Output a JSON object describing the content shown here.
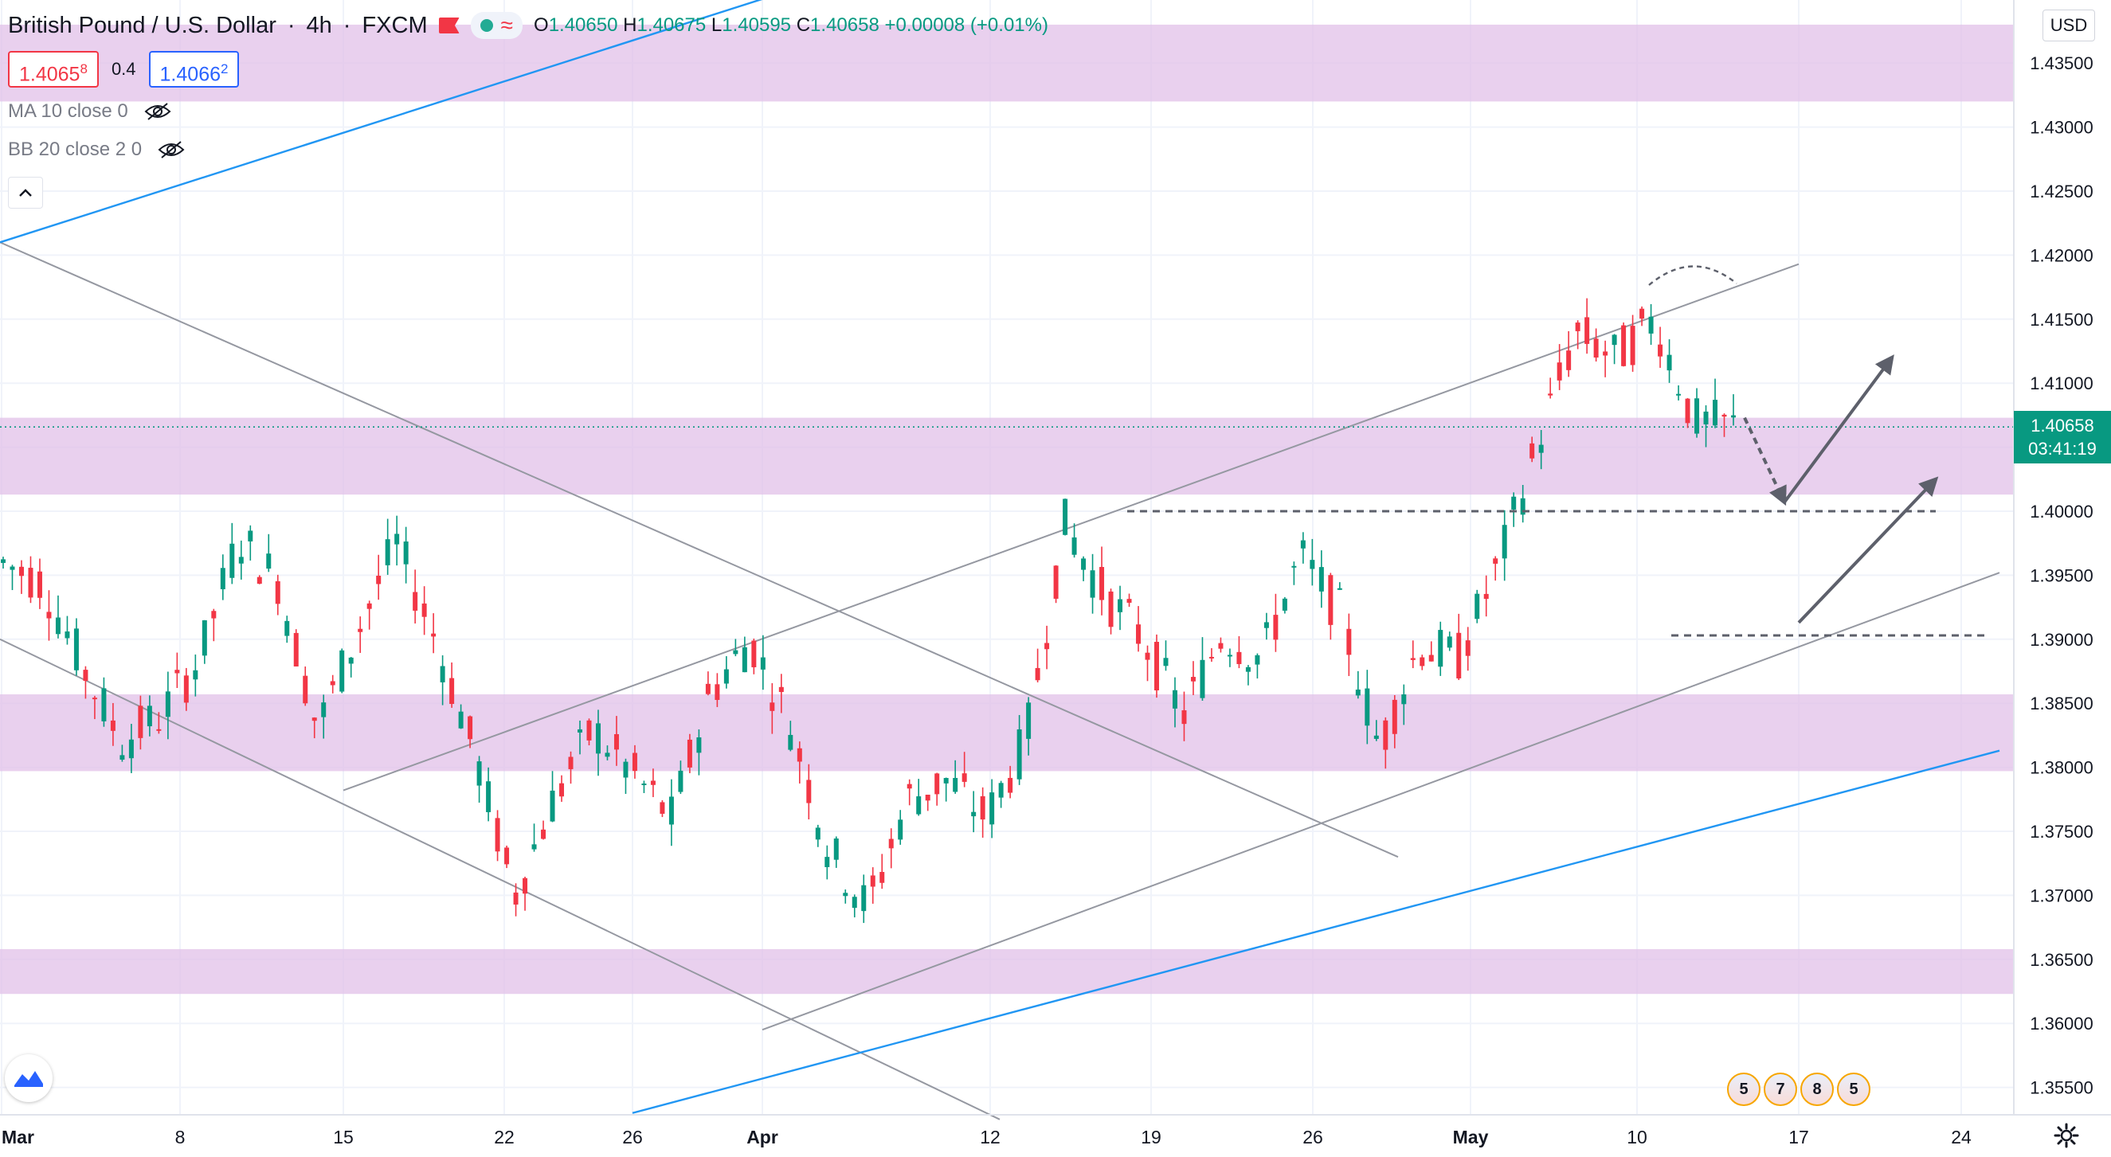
{
  "header": {
    "symbol": "British Pound / U.S. Dollar",
    "sep1": "·",
    "interval": "4h",
    "sep2": "·",
    "source": "FXCM",
    "approx_glyph": "≈",
    "ohlc": {
      "o_label": "O",
      "o": "1.40650",
      "h_label": "H",
      "h": "1.40675",
      "l_label": "L",
      "l": "1.40595",
      "c_label": "C",
      "c": "1.40658",
      "change": "+0.00008 (+0.01%)"
    }
  },
  "trade": {
    "sell_main": "1.4065",
    "sell_sup": "8",
    "spread": "0.4",
    "buy_main": "1.4066",
    "buy_sup": "2"
  },
  "indicators": [
    {
      "label": "MA 10 close 0"
    },
    {
      "label": "BB 20 close 2 0"
    }
  ],
  "currency_button": "USD",
  "current_price": {
    "price": "1.40658",
    "countdown": "03:41:19"
  },
  "events": [
    "5",
    "7",
    "8",
    "5"
  ],
  "colors": {
    "up": "#089981",
    "down": "#f23645",
    "zone": "#e1bee7",
    "channel": "#9598a1",
    "blue_line": "#2962ff"
  },
  "chart_data": {
    "type": "candlestick",
    "price_axis": {
      "min": 1.3545,
      "max": 1.4385,
      "ticks": [
        "1.35500",
        "1.36000",
        "1.36500",
        "1.37000",
        "1.37500",
        "1.38000",
        "1.38500",
        "1.39000",
        "1.39500",
        "1.40000",
        "1.40500",
        "1.41000",
        "1.41500",
        "1.42000",
        "1.42500",
        "1.43000",
        "1.43500"
      ]
    },
    "time_axis": {
      "labels": [
        "Mar",
        "8",
        "15",
        "22",
        "26",
        "Apr",
        "12",
        "19",
        "26",
        "May",
        "10",
        "17",
        "24"
      ]
    },
    "zones": [
      {
        "low": 1.432,
        "high": 1.438
      },
      {
        "low": 1.4013,
        "high": 1.4073
      },
      {
        "low": 1.3797,
        "high": 1.3857
      },
      {
        "low": 1.3623,
        "high": 1.3658
      }
    ],
    "levels": [
      {
        "price": 1.4,
        "from": "Apr 19",
        "to": "May 24"
      },
      {
        "price": 1.3903,
        "from": "May 13",
        "to": "May 26"
      }
    ],
    "trend_lines": [
      {
        "role": "upper channel",
        "p1": [
          "Mar 15",
          1.3782
        ],
        "p2": [
          "May 17",
          1.4193
        ]
      },
      {
        "role": "lower channel",
        "p1": [
          "Apr 1",
          1.3595
        ],
        "p2": [
          "May 26",
          1.3952
        ]
      },
      {
        "role": "descending upper",
        "p1": [
          "Mar 1",
          1.421
        ],
        "p2": [
          "Apr 21",
          1.373
        ]
      },
      {
        "role": "descending lower",
        "p1": [
          "Mar 1",
          1.39
        ],
        "p2": [
          "Apr 16",
          1.3525
        ]
      },
      {
        "role": "long-term support",
        "p1": [
          "Mar 26",
          1.353
        ],
        "p2": [
          "May 26",
          1.3813
        ]
      },
      {
        "role": "long-term resistance",
        "p1": [
          "Mar 1",
          1.421
        ],
        "p2": [
          "Apr 1",
          1.44
        ]
      }
    ],
    "projections": [
      {
        "style": "dashed arrow",
        "from": [
          "May 13",
          1.4073
        ],
        "to": [
          "May 16",
          1.4007
        ]
      },
      {
        "style": "arrow",
        "from": [
          "May 16",
          1.4007
        ],
        "to": [
          "May 21",
          1.412
        ]
      },
      {
        "style": "arrow",
        "from": [
          "May 17",
          1.3913
        ],
        "to": [
          "May 24",
          1.4025
        ]
      }
    ],
    "candles_ohlc_sample": [
      [
        1.393,
        1.3985,
        1.3905,
        1.396
      ],
      [
        1.396,
        1.401,
        1.394,
        1.3945
      ],
      [
        1.3945,
        1.3965,
        1.386,
        1.388
      ],
      [
        1.388,
        1.392,
        1.378,
        1.382
      ],
      [
        1.382,
        1.386,
        1.38,
        1.384
      ],
      [
        1.384,
        1.39,
        1.3815,
        1.3885
      ],
      [
        1.3885,
        1.399,
        1.387,
        1.398
      ],
      [
        1.398,
        1.4005,
        1.393,
        1.3945
      ],
      [
        1.3945,
        1.396,
        1.381,
        1.383
      ],
      [
        1.383,
        1.392,
        1.382,
        1.3905
      ],
      [
        1.3905,
        1.399,
        1.389,
        1.3975
      ],
      [
        1.3975,
        1.3985,
        1.388,
        1.39
      ],
      [
        1.39,
        1.391,
        1.379,
        1.381
      ],
      [
        1.381,
        1.383,
        1.368,
        1.37
      ],
      [
        1.37,
        1.379,
        1.369,
        1.3775
      ],
      [
        1.3775,
        1.385,
        1.376,
        1.383
      ],
      [
        1.383,
        1.386,
        1.378,
        1.3795
      ],
      [
        1.3795,
        1.382,
        1.373,
        1.376
      ],
      [
        1.376,
        1.388,
        1.375,
        1.386
      ],
      [
        1.386,
        1.3915,
        1.384,
        1.39
      ],
      [
        1.39,
        1.3905,
        1.382,
        1.3835
      ],
      [
        1.3835,
        1.3845,
        1.372,
        1.3735
      ],
      [
        1.3735,
        1.376,
        1.3665,
        1.369
      ],
      [
        1.369,
        1.379,
        1.368,
        1.3775
      ],
      [
        1.3775,
        1.38,
        1.375,
        1.379
      ],
      [
        1.379,
        1.381,
        1.372,
        1.376
      ],
      [
        1.376,
        1.385,
        1.374,
        1.382
      ],
      [
        1.382,
        1.4005,
        1.381,
        1.399
      ],
      [
        1.399,
        1.401,
        1.392,
        1.3935
      ],
      [
        1.3935,
        1.395,
        1.388,
        1.39
      ],
      [
        1.39,
        1.392,
        1.382,
        1.384
      ],
      [
        1.384,
        1.392,
        1.383,
        1.3905
      ],
      [
        1.3905,
        1.393,
        1.387,
        1.3885
      ],
      [
        1.3885,
        1.3975,
        1.3875,
        1.3965
      ],
      [
        1.3965,
        1.3975,
        1.39,
        1.392
      ],
      [
        1.392,
        1.3935,
        1.38,
        1.3815
      ],
      [
        1.3815,
        1.391,
        1.381,
        1.3895
      ],
      [
        1.3895,
        1.391,
        1.386,
        1.3885
      ],
      [
        1.3885,
        1.3965,
        1.3875,
        1.3955
      ],
      [
        1.3955,
        1.406,
        1.3945,
        1.405
      ],
      [
        1.405,
        1.4155,
        1.404,
        1.414
      ],
      [
        1.414,
        1.416,
        1.41,
        1.412
      ],
      [
        1.412,
        1.4165,
        1.411,
        1.415
      ],
      [
        1.415,
        1.4155,
        1.406,
        1.407
      ],
      [
        1.407,
        1.4075,
        1.4055,
        1.4066
      ]
    ]
  }
}
